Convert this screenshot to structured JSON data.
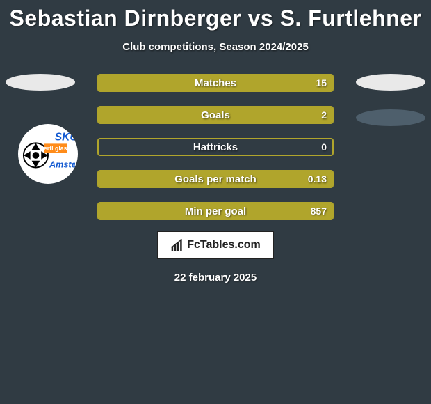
{
  "colors": {
    "background": "#303b43",
    "text": "#ffffff",
    "oval": "#e9e9e9",
    "bar_primary": "#b0a52c",
    "bubble_bg": "#4e5f6c",
    "logo_bg": "#ffffff",
    "logo_text": "#222222"
  },
  "title": "Sebastian Dirnberger vs S. Furtlehner",
  "subtitle": "Club competitions, Season 2024/2025",
  "left_ovals": 1,
  "right_ovals": 2,
  "badge": {
    "text_line1": "SKU",
    "text_line2": "Amstetten"
  },
  "bars": [
    {
      "label": "Matches",
      "value": "15",
      "fill_pct": 100
    },
    {
      "label": "Goals",
      "value": "2",
      "fill_pct": 100
    },
    {
      "label": "Hattricks",
      "value": "0",
      "fill_pct": 0
    },
    {
      "label": "Goals per match",
      "value": "0.13",
      "fill_pct": 100
    },
    {
      "label": "Min per goal",
      "value": "857",
      "fill_pct": 100
    }
  ],
  "logo_text": "FcTables.com",
  "date": "22 february 2025"
}
